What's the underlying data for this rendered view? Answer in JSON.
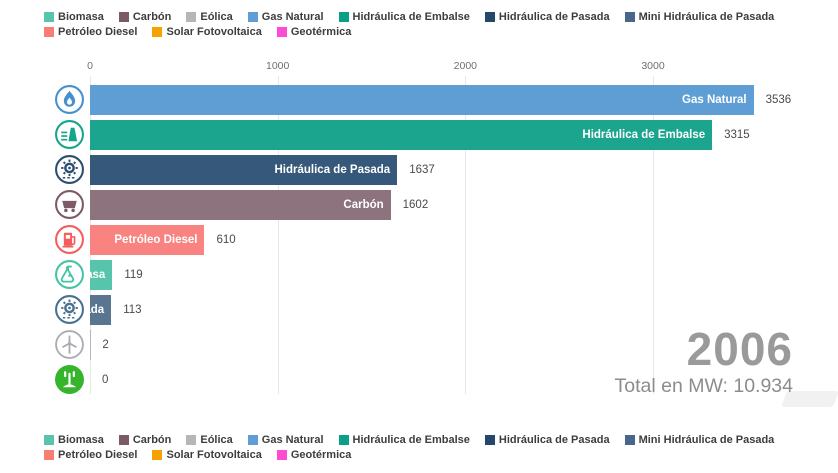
{
  "chart_data": {
    "type": "bar",
    "orientation": "horizontal",
    "year": "2006",
    "total_label": "Total en MW: 10.934",
    "x_axis": {
      "ticks": [
        "0",
        "1000",
        "2000",
        "3000"
      ],
      "tick_values": [
        0,
        1000,
        2000,
        3000
      ],
      "xlim": [
        0,
        3986
      ],
      "grid": true
    },
    "bars": [
      {
        "label": "Gas Natural",
        "value": 3536,
        "display_value": "3536",
        "color": "#5f9ed5",
        "icon": "gas-flame-icon"
      },
      {
        "label": "Hidráulica de Embalse",
        "value": 3315,
        "display_value": "3315",
        "color": "#1ba58f",
        "icon": "dam-icon"
      },
      {
        "label": "Hidráulica de Pasada",
        "value": 1637,
        "display_value": "1637",
        "color": "#36587a",
        "icon": "water-turbine-icon"
      },
      {
        "label": "Carbón",
        "value": 1602,
        "display_value": "1602",
        "color": "#8d737d",
        "icon": "mine-cart-icon"
      },
      {
        "label": "Petróleo Diesel",
        "value": 610,
        "display_value": "610",
        "color": "#f98380",
        "icon": "fuel-pump-icon"
      },
      {
        "label": "Biomasa",
        "value": 119,
        "display_value": "119",
        "color": "#56c5ab",
        "icon": "biomass-flask-icon"
      },
      {
        "label": "Mini Hidráulica de Pasada",
        "value": 113,
        "display_value": "113",
        "color": "#5a7590",
        "icon": "mini-turbine-icon"
      },
      {
        "label": "Eólica",
        "value": 2,
        "display_value": "2",
        "color": "#b4b7ba",
        "icon": "wind-turbine-icon"
      },
      {
        "label": "Geotérmica",
        "value": 0,
        "display_value": "0",
        "color": "#35b42c",
        "icon": "geyser-icon"
      }
    ],
    "legend": [
      {
        "label": "Biomasa",
        "color": "#56c5ab"
      },
      {
        "label": "Carbón",
        "color": "#7b5965"
      },
      {
        "label": "Eólica",
        "color": "#b4b7ba"
      },
      {
        "label": "Gas Natural",
        "color": "#5f9ed5"
      },
      {
        "label": "Hidráulica de Embalse",
        "color": "#0d9f85"
      },
      {
        "label": "Hidráulica de Pasada",
        "color": "#24476a"
      },
      {
        "label": "Mini Hidráulica de Pasada",
        "color": "#47688a"
      },
      {
        "label": "Petróleo Diesel",
        "color": "#f87d72"
      },
      {
        "label": "Solar Fotovoltaica",
        "color": "#f5a100"
      },
      {
        "label": "Geotérmica",
        "color": "#ff4ad5"
      }
    ]
  }
}
